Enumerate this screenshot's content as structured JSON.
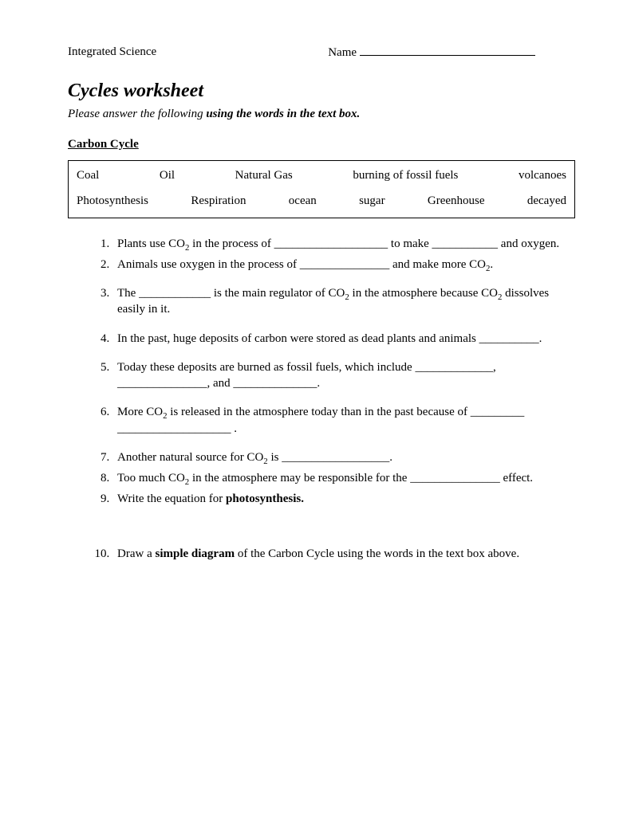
{
  "header": {
    "course": "Integrated Science",
    "nameLabel": "Name"
  },
  "title": "Cycles worksheet",
  "instructions": {
    "prefix": "Please answer the following ",
    "bold": "using the words in the text box."
  },
  "section": "Carbon Cycle",
  "wordbox": {
    "row1": [
      "Coal",
      "Oil",
      "Natural Gas",
      "burning of fossil fuels",
      "volcanoes"
    ],
    "row2": [
      "Photosynthesis",
      "Respiration",
      "ocean",
      "sugar",
      "Greenhouse",
      "decayed"
    ]
  },
  "questions": {
    "q1a": "Plants use CO",
    "q1b": " in the process of ___________________ to make ___________ and oxygen.",
    "q2a": "Animals use oxygen in the process of _______________ and make more CO",
    "q2b": ".",
    "q3a": "The ____________ is the main regulator of CO",
    "q3b": " in the atmosphere because CO",
    "q3c": " dissolves easily in it.",
    "q4": "In the past, huge deposits of carbon were stored as dead plants and animals __________.",
    "q5": "Today these deposits are burned as fossil fuels, which include _____________, _______________, and ______________.",
    "q6a": "More CO",
    "q6b": " is released in the atmosphere today than in the past because of _________ ___________________ .",
    "q7a": "Another natural source for CO",
    "q7b": " is __________________.",
    "q8a": "Too much CO",
    "q8b": " in the atmosphere may be responsible for the _______________ effect.",
    "q9a": "Write the equation for ",
    "q9b": "photosynthesis.",
    "q10a": "Draw a ",
    "q10b": "simple diagram",
    "q10c": " of the Carbon Cycle using the words in the text box above."
  },
  "sub2": "2"
}
